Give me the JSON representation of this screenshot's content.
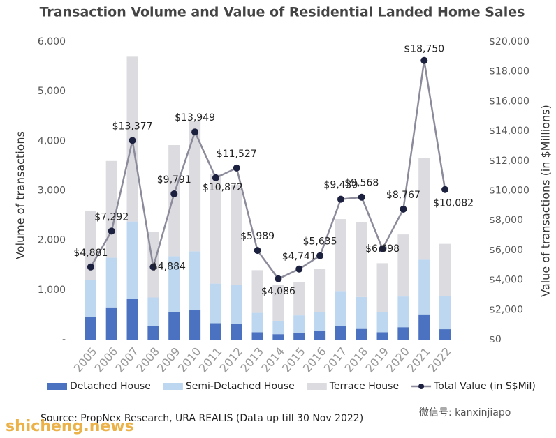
{
  "chart_data": {
    "type": "bar-line",
    "title": "Transaction Volume and Value of Residential Landed Home Sales",
    "ylabel": "Volume of transactions",
    "y2label": "Value of transactions (in $Millions)",
    "categories": [
      "2005",
      "2006",
      "2007",
      "2008",
      "2009",
      "2010",
      "2011",
      "2012",
      "2013",
      "2014",
      "2015",
      "2016",
      "2017",
      "2018",
      "2019",
      "2020",
      "2021",
      "2022"
    ],
    "series": [
      {
        "name": "Detached House",
        "color": "#4a72c0",
        "values": [
          460,
          650,
          820,
          270,
          550,
          590,
          330,
          310,
          150,
          110,
          140,
          180,
          270,
          230,
          150,
          250,
          510,
          210
        ]
      },
      {
        "name": "Semi-Detached House",
        "color": "#bdd7f0",
        "values": [
          740,
          1000,
          1560,
          580,
          1130,
          1190,
          800,
          790,
          390,
          270,
          350,
          380,
          710,
          630,
          410,
          620,
          1100,
          670
        ]
      },
      {
        "name": "Terrace House",
        "color": "#dcdbe0",
        "values": [
          1400,
          1950,
          3320,
          1320,
          2240,
          2620,
          2200,
          2020,
          860,
          720,
          670,
          860,
          1450,
          1510,
          980,
          1250,
          2050,
          1050
        ]
      },
      {
        "name": "Total Value (in S$Mil)",
        "color": "#8b8b9b",
        "marker_color": "#1c2140",
        "axis": "y2",
        "values": [
          4881,
          7292,
          13377,
          4884,
          9791,
          13949,
          10872,
          11527,
          5989,
          4086,
          4741,
          5635,
          9430,
          9568,
          6098,
          8767,
          18750,
          10082
        ],
        "value_labels": [
          "$4,881",
          "$7,292",
          "$13,377",
          "$4,884",
          "$9,791",
          "$13,949",
          "$10,872",
          "$11,527",
          "$5,989",
          "$4,086",
          "$4,741",
          "$5,635",
          "$9,430",
          "$9,568",
          "$6,098",
          "$8,767",
          "$18,750",
          "$10,082"
        ]
      }
    ],
    "ylim": [
      0,
      6000
    ],
    "yticks": [
      {
        "value": 0,
        "label": "-"
      },
      {
        "value": 1000,
        "label": "1,000"
      },
      {
        "value": 2000,
        "label": "2,000"
      },
      {
        "value": 3000,
        "label": "3,000"
      },
      {
        "value": 4000,
        "label": "4,000"
      },
      {
        "value": 5000,
        "label": "5,000"
      },
      {
        "value": 6000,
        "label": "6,000"
      }
    ],
    "y2lim": [
      0,
      20000
    ],
    "y2ticks": [
      {
        "value": 0,
        "label": "$0"
      },
      {
        "value": 2000,
        "label": "$2,000"
      },
      {
        "value": 4000,
        "label": "$4,000"
      },
      {
        "value": 6000,
        "label": "$6,000"
      },
      {
        "value": 8000,
        "label": "$8,000"
      },
      {
        "value": 10000,
        "label": "$10,000"
      },
      {
        "value": 12000,
        "label": "$12,000"
      },
      {
        "value": 14000,
        "label": "$14,000"
      },
      {
        "value": 16000,
        "label": "$16,000"
      },
      {
        "value": 18000,
        "label": "$18,000"
      },
      {
        "value": 20000,
        "label": "$20,000"
      }
    ],
    "source": "Source: PropNex Research, URA REALIS (Data up till 30 Nov 2022)",
    "watermarks": [
      "shicheng.news",
      "微信号: kanxinjiapo"
    ]
  }
}
